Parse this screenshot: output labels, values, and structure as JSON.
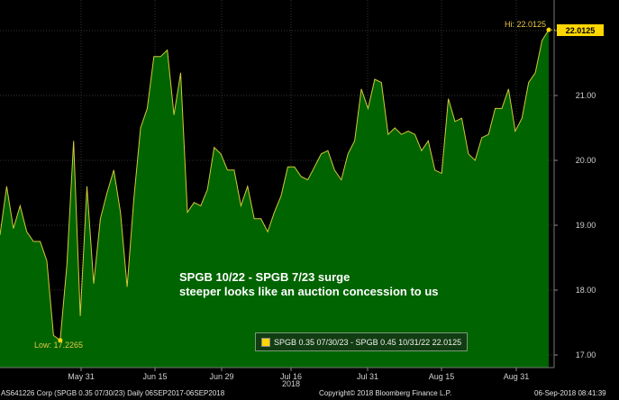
{
  "colors": {
    "background": "#000000",
    "area_fill": "#006400",
    "line": "#d4c93a",
    "marker": "#ffd700",
    "grid": "#333333"
  },
  "chart_data": {
    "type": "area",
    "title": "",
    "annotation_lines": [
      "SPGB 10/22 - SPGB 7/23 surge",
      "steeper looks like an auction concession to us"
    ],
    "legend": "SPGB 0.35 07/30/23 - SPGB 0.45 10/31/22  22.0125",
    "legend_position": "bottom-right",
    "ylim": [
      16.8,
      22.5
    ],
    "y_ticks": [
      "17.00",
      "18.00",
      "19.00",
      "20.00",
      "21.00",
      "22.00"
    ],
    "x_ticks": [
      "May 31",
      "Jun 15",
      "Jun 29",
      "Jul 16",
      "Jul 31",
      "Aug 15",
      "Aug 31"
    ],
    "x_year": "2018",
    "grid": true,
    "last_value_label": "22.0125",
    "high_label": "Hi: 22.0125",
    "low_label": "Low: 17.2265",
    "series": [
      {
        "values": [
          18.85,
          19.6,
          18.95,
          19.3,
          18.9,
          18.75,
          18.75,
          18.45,
          17.3,
          17.2265,
          18.4,
          20.3,
          17.6,
          19.6,
          18.1,
          19.1,
          19.5,
          19.85,
          19.2,
          18.05,
          19.4,
          20.5,
          20.8,
          21.6,
          21.6,
          21.7,
          20.7,
          21.35,
          19.2,
          19.35,
          19.3,
          19.55,
          20.2,
          20.1,
          19.85,
          19.85,
          19.3,
          19.6,
          19.1,
          19.1,
          18.9,
          19.2,
          19.45,
          19.9,
          19.9,
          19.75,
          19.7,
          19.9,
          20.1,
          20.15,
          19.85,
          19.7,
          20.1,
          20.3,
          21.1,
          20.8,
          21.25,
          21.2,
          20.4,
          20.5,
          20.4,
          20.45,
          20.4,
          20.15,
          20.3,
          19.85,
          19.8,
          20.95,
          20.6,
          20.65,
          20.1,
          20.0,
          20.35,
          20.4,
          20.8,
          20.8,
          21.1,
          20.45,
          20.65,
          21.2,
          21.35,
          21.85,
          22.0125
        ]
      }
    ]
  },
  "footer": {
    "left": "AS641226 Corp (SPGB 0.35 07/30/23)  Daily 06SEP2017-06SEP2018",
    "center": "Copyright© 2018 Bloomberg Finance L.P.",
    "right": "06-Sep-2018 08:41:39"
  }
}
